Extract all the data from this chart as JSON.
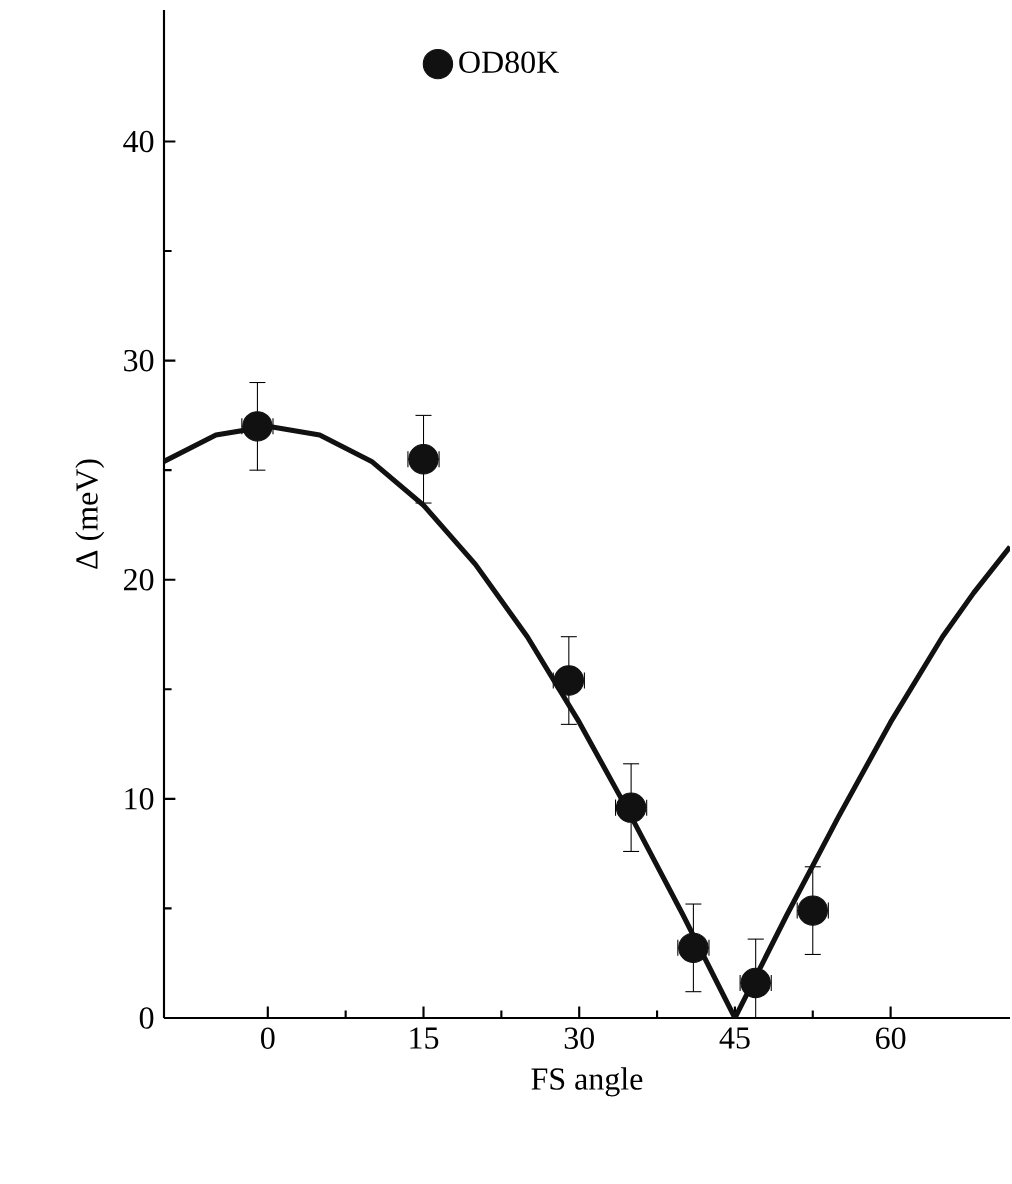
{
  "chart_data": {
    "type": "scatter",
    "xlabel": "FS angle",
    "ylabel": "Δ (meV)",
    "xlim": [
      -10,
      71.5
    ],
    "ylim": [
      0,
      46
    ],
    "xticks": [
      0,
      15,
      30,
      45,
      60
    ],
    "yticks": [
      0,
      10,
      20,
      30,
      40
    ],
    "legend": "top",
    "grid": false,
    "series": [
      {
        "name": "OD80K",
        "color": "#111111",
        "marker": "circle",
        "x": [
          -1,
          15,
          29,
          35,
          41,
          47,
          52.5
        ],
        "values": [
          27,
          25.5,
          15.4,
          9.6,
          3.2,
          1.6,
          4.9
        ],
        "errors": [
          2,
          2,
          2,
          2,
          2,
          2,
          2
        ],
        "xerrors": [
          1.5,
          1.5,
          1.5,
          1.5,
          1.5,
          1.5,
          1.5
        ]
      },
      {
        "type": "line",
        "color": "#111111",
        "marker": "none",
        "line_style": "solid",
        "x": [
          -10,
          -5,
          0,
          5,
          10,
          15,
          20,
          25,
          30,
          35,
          40,
          45,
          50,
          55,
          60,
          65,
          68,
          71.5
        ],
        "values": [
          25.4,
          26.6,
          27,
          26.6,
          25.4,
          23.4,
          20.7,
          17.4,
          13.5,
          9.2,
          4.7,
          0,
          4.7,
          9.2,
          13.5,
          17.4,
          19.4,
          21.5
        ]
      }
    ]
  }
}
